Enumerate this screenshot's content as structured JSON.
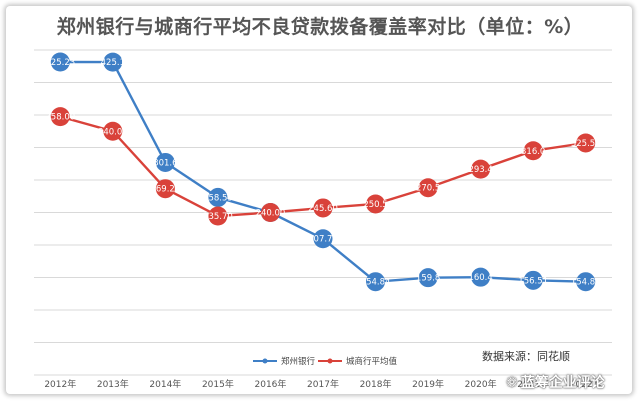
{
  "chart_data": {
    "type": "line",
    "title": "郑州银行与城商行平均不良贷款拨备覆盖率对比（单位：%）",
    "categories": [
      "2012年",
      "2013年",
      "2014年",
      "2015年",
      "2016年",
      "2017年",
      "2018年",
      "2019年",
      "2020年",
      "2021年",
      "2022年"
    ],
    "ylim": [
      40,
      440
    ],
    "grid": true,
    "legend": "bottom-center",
    "series": [
      {
        "name": "郑州银行",
        "color": "#3f7fc6",
        "values": [
          425.23,
          425.1,
          301.6,
          258.55,
          240.0,
          207.71,
          154.84,
          159.8,
          160.4,
          156.51,
          154.83
        ],
        "labels": [
          "425.23",
          "425.1",
          "301.6",
          "258.55",
          "",
          "207.71",
          "154.84",
          "159.8",
          "160.4",
          "156.51",
          "154.83"
        ]
      },
      {
        "name": "城商行平均值",
        "color": "#d9423a",
        "values": [
          358.0,
          340.0,
          269.28,
          235.7,
          240.0,
          245.6,
          250.5,
          270.5,
          293.4,
          316.0,
          325.58
        ],
        "labels": [
          "358.00",
          "340.00",
          "269.28",
          "235.70",
          "",
          "245.60",
          "250.5",
          "270.5",
          "293.4",
          "316.0",
          "325.58"
        ]
      }
    ],
    "overlap_label": "240.00"
  },
  "legend": {
    "series_1": "郑州银行",
    "series_2": "城商行平均值"
  },
  "source": "数据来源：同花顺",
  "watermark": "蓝筹企业评论",
  "colors": {
    "series_1": "#3f7fc6",
    "series_2": "#d9423a",
    "grid": "#d9d9d9"
  }
}
